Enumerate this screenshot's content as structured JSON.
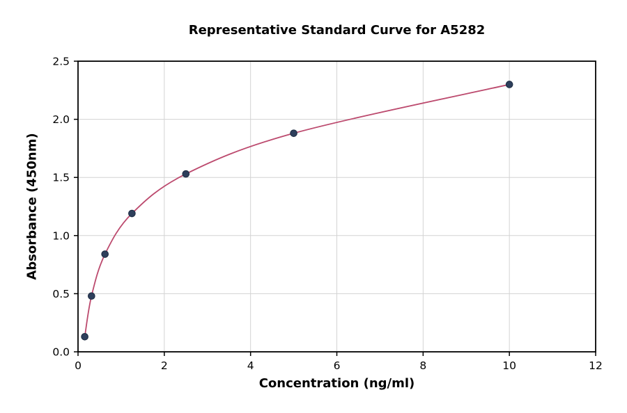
{
  "chart_data": {
    "type": "scatter",
    "title": "Representative Standard Curve for A5282",
    "xlabel": "Concentration (ng/ml)",
    "ylabel": "Absorbance (450nm)",
    "xlim": [
      0,
      12
    ],
    "ylim": [
      0,
      2.5
    ],
    "xticks": [
      0,
      2,
      4,
      6,
      8,
      10,
      12
    ],
    "xticklabels": [
      "0",
      "2",
      "4",
      "6",
      "8",
      "10",
      "12"
    ],
    "yticks": [
      0,
      0.5,
      1.0,
      1.5,
      2.0,
      2.5
    ],
    "yticklabels": [
      "0.0",
      "0.5",
      "1.0",
      "1.5",
      "2.0",
      "2.5"
    ],
    "grid": true,
    "legend_position": "none",
    "style": {
      "grid_color": "#d3d3d3",
      "frame_color": "#000000",
      "background": "#ffffff"
    },
    "series": [
      {
        "name": "standard-points",
        "type": "scatter",
        "color": "#2e3f5c",
        "edge_color": "#1c2a40",
        "x": [
          0.156,
          0.3125,
          0.625,
          1.25,
          2.5,
          5,
          10
        ],
        "y": [
          0.13,
          0.48,
          0.84,
          1.19,
          1.53,
          1.88,
          2.3
        ]
      },
      {
        "name": "fitted-curve",
        "type": "line",
        "color": "#bc4a6e"
      }
    ]
  }
}
